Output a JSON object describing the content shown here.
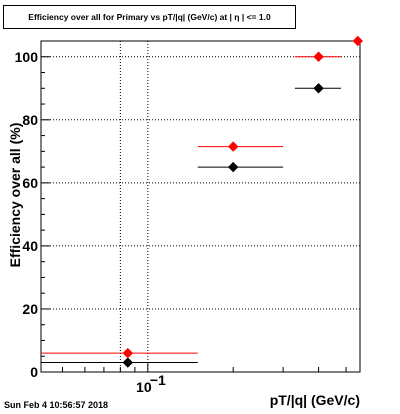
{
  "timestamp": "Sun Feb  4 10:56:57 2018",
  "chart_data": {
    "type": "scatter",
    "title": "Efficiency over all for Primary vs pT/|q| (GeV/c) at | η | <= 1.0",
    "xlabel": "pT/|q| (GeV/c)",
    "ylabel": "Efficiency over all (%)",
    "xscale": "log",
    "xlim": [
      0.042,
      0.56
    ],
    "ylim": [
      0,
      105
    ],
    "grid": true,
    "x_tick_labels": [
      {
        "base": "10",
        "exp": "−1",
        "value": 0.1
      }
    ],
    "y_ticks": [
      0,
      20,
      40,
      60,
      80,
      100
    ],
    "series": [
      {
        "color": "#000000",
        "points": [
          {
            "x": 0.085,
            "y": 3.0,
            "xmin": 0.042,
            "xmax": 0.15
          },
          {
            "x": 0.2,
            "y": 65.0,
            "xmin": 0.15,
            "xmax": 0.3
          },
          {
            "x": 0.4,
            "y": 90.0,
            "xmin": 0.33,
            "xmax": 0.48
          }
        ]
      },
      {
        "color": "#ff0000",
        "points": [
          {
            "x": 0.085,
            "y": 6.0,
            "xmin": 0.042,
            "xmax": 0.15
          },
          {
            "x": 0.2,
            "y": 71.5,
            "xmin": 0.15,
            "xmax": 0.3
          },
          {
            "x": 0.4,
            "y": 100.0,
            "xmin": 0.33,
            "xmax": 0.48
          },
          {
            "x": 0.55,
            "y": 105.0,
            "xmin": 0.55,
            "xmax": 0.55
          }
        ]
      }
    ]
  }
}
